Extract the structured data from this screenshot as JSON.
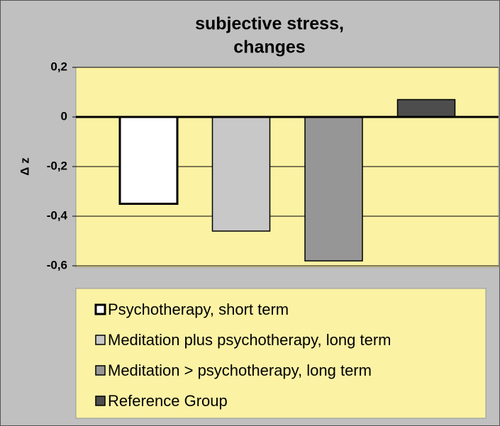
{
  "chart_data": {
    "type": "bar",
    "title": "subjective stress,",
    "subtitle": "changes",
    "y_label": "Δ z",
    "categories": [
      null
    ],
    "series": [
      {
        "name": "Psychotherapy, short term",
        "color": "#ffffff",
        "values": [
          -0.35
        ]
      },
      {
        "name": "Meditation plus psychotherapy, long term",
        "color": "#c8c8c8",
        "values": [
          -0.46
        ]
      },
      {
        "name": "Meditation > psychotherapy, long term",
        "color": "#969696",
        "values": [
          -0.58
        ]
      },
      {
        "name": "Reference Group",
        "color": "#4d4d4d",
        "values": [
          0.07
        ]
      }
    ],
    "ylim": [
      -0.6,
      0.2
    ],
    "yticks": [
      {
        "value": 0.2,
        "label": "0,2"
      },
      0,
      {
        "value": -0.2,
        "label": "-0,2"
      },
      {
        "value": -0.4,
        "label": "-0,4"
      },
      {
        "value": -0.6,
        "label": "-0,6"
      }
    ],
    "grid": true,
    "legend": "bottom"
  }
}
